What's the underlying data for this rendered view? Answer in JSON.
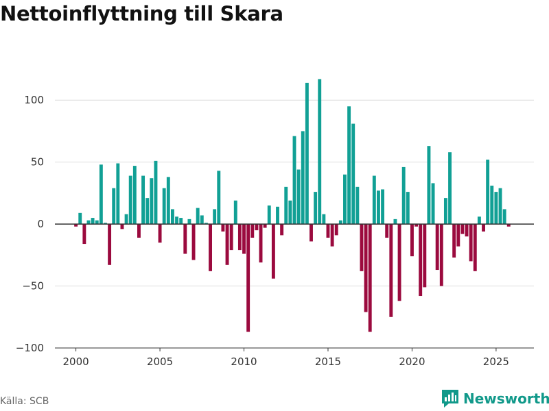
{
  "title": "Nettoinflyttning till Skara",
  "source": "Källa: SCB",
  "brand": {
    "name": "Newsworthy",
    "icon": "newsworthy-logo-icon",
    "color": "#11998a"
  },
  "colors": {
    "positive": "#11a095",
    "negative": "#9b0a3e",
    "grid": "#dddddd",
    "axis": "#333333"
  },
  "chart_data": {
    "type": "bar",
    "title": "Nettoinflyttning till Skara",
    "xlabel": "",
    "ylabel": "",
    "period": "quarterly",
    "start": 2000.0,
    "step": 0.25,
    "xlim": [
      1998.75,
      2027.25
    ],
    "ylim": [
      -100,
      125
    ],
    "yticks": [
      -100,
      -50,
      0,
      50,
      100
    ],
    "ytick_labels": [
      "−100",
      "−50",
      "0",
      "50",
      "100"
    ],
    "xticks": [
      2000,
      2005,
      2010,
      2015,
      2020,
      2025
    ],
    "xtick_labels": [
      "2000",
      "2005",
      "2010",
      "2015",
      "2020",
      "2025"
    ],
    "values": [
      -2,
      9,
      -16,
      3,
      5,
      3,
      48,
      1,
      -33,
      29,
      49,
      -4,
      8,
      39,
      47,
      -11,
      39,
      21,
      37,
      51,
      -15,
      29,
      38,
      12,
      6,
      5,
      -24,
      4,
      -29,
      13,
      7,
      1,
      -38,
      12,
      43,
      -6,
      -33,
      -21,
      19,
      -21,
      -24,
      -87,
      -11,
      -5,
      -31,
      -3,
      15,
      -44,
      14,
      -9,
      30,
      19,
      71,
      44,
      75,
      114,
      -14,
      26,
      117,
      8,
      -11,
      -18,
      -9,
      3,
      40,
      95,
      81,
      30,
      -38,
      -71,
      -87,
      39,
      27,
      28,
      -11,
      -75,
      4,
      -62,
      46,
      26,
      -26,
      -2,
      -58,
      -51,
      63,
      33,
      -37,
      -50,
      21,
      58,
      -27,
      -18,
      -8,
      -10,
      -30,
      -38,
      6,
      -6,
      52,
      31,
      26,
      29,
      12,
      -2
    ]
  }
}
